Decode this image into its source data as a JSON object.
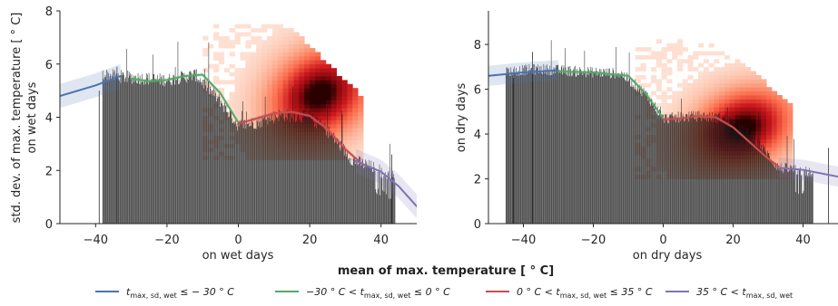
{
  "figure": {
    "suptitle": "mean of max. temperature [$^\\circ$C]",
    "suptitle_text": "mean of max. temperature [ ° C]"
  },
  "legend": {
    "placement": "bottom-center",
    "entries": [
      {
        "label_main": "t",
        "label_sub": "max, sd, wet",
        "label_rest": " ≤ − 30 ° C",
        "color": "#4c72b0"
      },
      {
        "label_pre": "−30 ° C < t",
        "label_sub": "max, sd, wet",
        "label_rest": " ≤ 0 ° C",
        "color": "#55a868"
      },
      {
        "label_pre": "0 ° C < t",
        "label_sub": "max, sd, wet",
        "label_rest": " ≤ 35 ° C",
        "color": "#c44e52"
      },
      {
        "label_pre": "35 ° C < t",
        "label_sub": "max, sd, wet",
        "color": "#8172b2"
      }
    ]
  },
  "chart_data": [
    {
      "type": "bar",
      "panel": "left",
      "xlabel": "on wet days",
      "ylabel": "std. dev. of max. temperature [ ° C]\non wet days",
      "ylabel_line1": "std. dev. of max. temperature [ ° C]",
      "ylabel_line2": "on wet days",
      "xlim": [
        -50,
        50
      ],
      "ylim": [
        0,
        8
      ],
      "xticks": [
        -40,
        -20,
        0,
        20,
        40
      ],
      "yticks": [
        0,
        2,
        4,
        6,
        8
      ],
      "grid": false,
      "histogram_bars": {
        "color": "#1a1a1a",
        "x_range": [
          -38,
          44
        ],
        "envelope": [
          [
            -38,
            5.6
          ],
          [
            -30,
            5.5
          ],
          [
            -20,
            5.4
          ],
          [
            -12,
            5.6
          ],
          [
            -5,
            4.6
          ],
          [
            0,
            3.7
          ],
          [
            5,
            3.8
          ],
          [
            12,
            4.1
          ],
          [
            20,
            4.0
          ],
          [
            25,
            3.5
          ],
          [
            32,
            2.4
          ],
          [
            38,
            2.1
          ],
          [
            44,
            1.7
          ]
        ]
      },
      "density_heatmap": {
        "colormap": "Reds",
        "x_range": [
          -10,
          35
        ],
        "y_range": [
          2.4,
          7.5
        ],
        "peak": [
          22,
          4.8
        ]
      },
      "fit_lines": [
        {
          "name": "t ≤ −30",
          "color": "#4c72b0",
          "x": [
            -50,
            -40,
            -33
          ],
          "y": [
            4.8,
            5.2,
            5.55
          ]
        },
        {
          "name": "−30 < t ≤ 0",
          "color": "#55a868",
          "x": [
            -30,
            -25,
            -20,
            -15,
            -10,
            -5,
            0
          ],
          "y": [
            5.45,
            5.35,
            5.4,
            5.55,
            5.6,
            4.9,
            3.8
          ]
        },
        {
          "name": "0 < t ≤ 35",
          "color": "#c44e52",
          "x": [
            0,
            5,
            10,
            15,
            20,
            25,
            30,
            35
          ],
          "y": [
            3.75,
            3.95,
            4.15,
            4.2,
            4.05,
            3.55,
            2.8,
            2.2
          ]
        },
        {
          "name": "35 < t",
          "color": "#8172b2",
          "x": [
            33,
            40,
            45,
            50
          ],
          "y": [
            2.35,
            1.95,
            1.4,
            0.65
          ]
        }
      ]
    },
    {
      "type": "bar",
      "panel": "right",
      "xlabel": "on dry days",
      "ylabel": "on dry days",
      "xlim": [
        -50,
        50
      ],
      "ylim": [
        0,
        9.5
      ],
      "xticks": [
        -40,
        -20,
        0,
        20,
        40
      ],
      "yticks": [
        0,
        2,
        4,
        6,
        8
      ],
      "grid": false,
      "histogram_bars": {
        "color": "#1a1a1a",
        "x_range": [
          -45,
          43
        ],
        "envelope": [
          [
            -45,
            6.8
          ],
          [
            -35,
            6.9
          ],
          [
            -25,
            6.8
          ],
          [
            -12,
            6.7
          ],
          [
            -5,
            5.8
          ],
          [
            0,
            4.7
          ],
          [
            10,
            4.8
          ],
          [
            18,
            4.7
          ],
          [
            25,
            4.0
          ],
          [
            33,
            2.5
          ],
          [
            43,
            2.3
          ]
        ]
      },
      "density_heatmap": {
        "colormap": "Reds",
        "x_range": [
          -8,
          36
        ],
        "y_range": [
          2.0,
          8.1
        ],
        "peak": [
          22,
          4.2
        ]
      },
      "fit_lines": [
        {
          "name": "t ≤ −30",
          "color": "#4c72b0",
          "x": [
            -50,
            -40,
            -30
          ],
          "y": [
            6.6,
            6.75,
            6.85
          ]
        },
        {
          "name": "−30 < t ≤ 0",
          "color": "#55a868",
          "x": [
            -30,
            -20,
            -10,
            -5,
            0
          ],
          "y": [
            6.8,
            6.75,
            6.6,
            5.8,
            4.7
          ]
        },
        {
          "name": "0 < t ≤ 35",
          "color": "#c44e52",
          "x": [
            0,
            5,
            10,
            15,
            20,
            25,
            30,
            33
          ],
          "y": [
            4.65,
            4.7,
            4.8,
            4.75,
            4.3,
            3.6,
            2.9,
            2.55
          ]
        },
        {
          "name": "35 < t",
          "color": "#8172b2",
          "x": [
            33,
            40,
            50
          ],
          "y": [
            2.5,
            2.4,
            2.1
          ]
        }
      ]
    }
  ]
}
